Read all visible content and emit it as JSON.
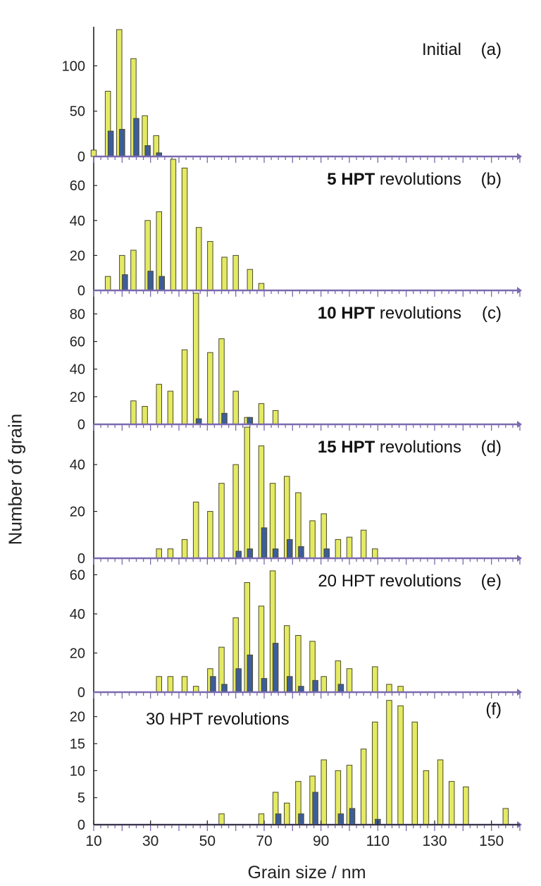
{
  "chart_data": {
    "type": "bar",
    "ylabel": "Number of grain",
    "xlabel": "Grain size / nm",
    "xlim": [
      10,
      160
    ],
    "x_ticks": [
      10,
      30,
      50,
      70,
      90,
      110,
      130,
      150
    ],
    "colors": {
      "primary": "#e4ea62",
      "secondary": "#3d5d9a",
      "outline": "#4a4a2a",
      "axis": "#7a6ab0"
    },
    "panels": [
      {
        "id": "a",
        "label": "Initial",
        "letter": "(a)",
        "label_bold": false,
        "label_position": "top-right",
        "ylim": [
          0,
          140
        ],
        "yticks": [
          0,
          50,
          100
        ],
        "primary": [
          {
            "x": 10,
            "y": 7
          },
          {
            "x": 15,
            "y": 72
          },
          {
            "x": 19,
            "y": 140
          },
          {
            "x": 24,
            "y": 108
          },
          {
            "x": 28,
            "y": 45
          },
          {
            "x": 32,
            "y": 23
          }
        ],
        "secondary": [
          {
            "x": 16,
            "y": 28
          },
          {
            "x": 20,
            "y": 30
          },
          {
            "x": 25,
            "y": 42
          },
          {
            "x": 29,
            "y": 12
          },
          {
            "x": 33,
            "y": 4
          }
        ]
      },
      {
        "id": "b",
        "label": "5 HPT revolutions",
        "label_bold_part": "5 HPT",
        "label_rest": " revolutions",
        "letter": "(b)",
        "label_bold": true,
        "label_position": "top-right",
        "ylim": [
          0,
          75
        ],
        "yticks": [
          0,
          20,
          40,
          60
        ],
        "primary": [
          {
            "x": 15,
            "y": 8
          },
          {
            "x": 20,
            "y": 20
          },
          {
            "x": 24,
            "y": 23
          },
          {
            "x": 29,
            "y": 40
          },
          {
            "x": 33,
            "y": 45
          },
          {
            "x": 38,
            "y": 75
          },
          {
            "x": 42,
            "y": 70
          },
          {
            "x": 47,
            "y": 36
          },
          {
            "x": 51,
            "y": 28
          },
          {
            "x": 56,
            "y": 19
          },
          {
            "x": 60,
            "y": 20
          },
          {
            "x": 65,
            "y": 12
          },
          {
            "x": 69,
            "y": 4
          }
        ],
        "secondary": [
          {
            "x": 21,
            "y": 9
          },
          {
            "x": 30,
            "y": 11
          },
          {
            "x": 34,
            "y": 8
          }
        ]
      },
      {
        "id": "c",
        "label": "10 HPT revolutions",
        "label_bold_part": "10 HPT",
        "label_rest": " revolutions",
        "letter": "(c)",
        "label_bold": true,
        "label_position": "top-right",
        "ylim": [
          0,
          95
        ],
        "yticks": [
          0,
          20,
          40,
          60,
          80
        ],
        "primary": [
          {
            "x": 24,
            "y": 17
          },
          {
            "x": 28,
            "y": 13
          },
          {
            "x": 33,
            "y": 29
          },
          {
            "x": 37,
            "y": 24
          },
          {
            "x": 42,
            "y": 54
          },
          {
            "x": 46,
            "y": 95
          },
          {
            "x": 51,
            "y": 52
          },
          {
            "x": 55,
            "y": 62
          },
          {
            "x": 60,
            "y": 24
          },
          {
            "x": 64,
            "y": 5
          },
          {
            "x": 69,
            "y": 15
          },
          {
            "x": 74,
            "y": 10
          }
        ],
        "secondary": [
          {
            "x": 47,
            "y": 4
          },
          {
            "x": 56,
            "y": 8
          },
          {
            "x": 65,
            "y": 5
          }
        ]
      },
      {
        "id": "d",
        "label": "15 HPT revolutions",
        "label_bold_part": "15 HPT",
        "label_rest": " revolutions",
        "letter": "(d)",
        "label_bold": true,
        "label_position": "top-right",
        "ylim": [
          0,
          56
        ],
        "yticks": [
          0,
          20,
          40
        ],
        "primary": [
          {
            "x": 33,
            "y": 4
          },
          {
            "x": 37,
            "y": 4
          },
          {
            "x": 42,
            "y": 8
          },
          {
            "x": 46,
            "y": 24
          },
          {
            "x": 51,
            "y": 20
          },
          {
            "x": 55,
            "y": 32
          },
          {
            "x": 60,
            "y": 40
          },
          {
            "x": 64,
            "y": 56
          },
          {
            "x": 69,
            "y": 48
          },
          {
            "x": 73,
            "y": 32
          },
          {
            "x": 78,
            "y": 35
          },
          {
            "x": 82,
            "y": 28
          },
          {
            "x": 87,
            "y": 16
          },
          {
            "x": 91,
            "y": 19
          },
          {
            "x": 96,
            "y": 8
          },
          {
            "x": 100,
            "y": 9
          },
          {
            "x": 105,
            "y": 12
          },
          {
            "x": 109,
            "y": 4
          }
        ],
        "secondary": [
          {
            "x": 61,
            "y": 3
          },
          {
            "x": 65,
            "y": 4
          },
          {
            "x": 70,
            "y": 13
          },
          {
            "x": 74,
            "y": 4
          },
          {
            "x": 79,
            "y": 8
          },
          {
            "x": 83,
            "y": 5
          },
          {
            "x": 92,
            "y": 4
          }
        ]
      },
      {
        "id": "e",
        "label": "20 HPT revolutions",
        "letter": "(e)",
        "label_bold": false,
        "label_position": "top-right",
        "ylim": [
          0,
          67
        ],
        "yticks": [
          0,
          20,
          40,
          60
        ],
        "primary": [
          {
            "x": 33,
            "y": 8
          },
          {
            "x": 37,
            "y": 8
          },
          {
            "x": 42,
            "y": 8
          },
          {
            "x": 46,
            "y": 3
          },
          {
            "x": 51,
            "y": 12
          },
          {
            "x": 55,
            "y": 23
          },
          {
            "x": 60,
            "y": 38
          },
          {
            "x": 64,
            "y": 56
          },
          {
            "x": 69,
            "y": 44
          },
          {
            "x": 73,
            "y": 62
          },
          {
            "x": 78,
            "y": 34
          },
          {
            "x": 82,
            "y": 29
          },
          {
            "x": 87,
            "y": 26
          },
          {
            "x": 91,
            "y": 8
          },
          {
            "x": 96,
            "y": 16
          },
          {
            "x": 100,
            "y": 12
          },
          {
            "x": 109,
            "y": 13
          },
          {
            "x": 114,
            "y": 4
          },
          {
            "x": 118,
            "y": 3
          }
        ],
        "secondary": [
          {
            "x": 52,
            "y": 8
          },
          {
            "x": 56,
            "y": 4
          },
          {
            "x": 61,
            "y": 12
          },
          {
            "x": 65,
            "y": 19
          },
          {
            "x": 70,
            "y": 7
          },
          {
            "x": 74,
            "y": 25
          },
          {
            "x": 79,
            "y": 8
          },
          {
            "x": 83,
            "y": 3
          },
          {
            "x": 88,
            "y": 6
          },
          {
            "x": 97,
            "y": 4
          }
        ]
      },
      {
        "id": "f",
        "label": "30 HPT revolutions",
        "letter": "(f)",
        "label_bold": false,
        "label_position": "top-left",
        "ylim": [
          0,
          24
        ],
        "yticks": [
          0,
          5,
          10,
          15,
          20
        ],
        "primary": [
          {
            "x": 55,
            "y": 2
          },
          {
            "x": 69,
            "y": 2
          },
          {
            "x": 74,
            "y": 6
          },
          {
            "x": 78,
            "y": 4
          },
          {
            "x": 82,
            "y": 8
          },
          {
            "x": 87,
            "y": 9
          },
          {
            "x": 91,
            "y": 12
          },
          {
            "x": 96,
            "y": 10
          },
          {
            "x": 100,
            "y": 11
          },
          {
            "x": 105,
            "y": 14
          },
          {
            "x": 109,
            "y": 19
          },
          {
            "x": 114,
            "y": 23
          },
          {
            "x": 118,
            "y": 22
          },
          {
            "x": 123,
            "y": 19
          },
          {
            "x": 127,
            "y": 10
          },
          {
            "x": 132,
            "y": 12
          },
          {
            "x": 136,
            "y": 8
          },
          {
            "x": 141,
            "y": 7
          },
          {
            "x": 155,
            "y": 3
          }
        ],
        "secondary": [
          {
            "x": 75,
            "y": 2
          },
          {
            "x": 83,
            "y": 2
          },
          {
            "x": 88,
            "y": 6
          },
          {
            "x": 97,
            "y": 2
          },
          {
            "x": 101,
            "y": 3
          },
          {
            "x": 110,
            "y": 1
          }
        ]
      }
    ]
  }
}
